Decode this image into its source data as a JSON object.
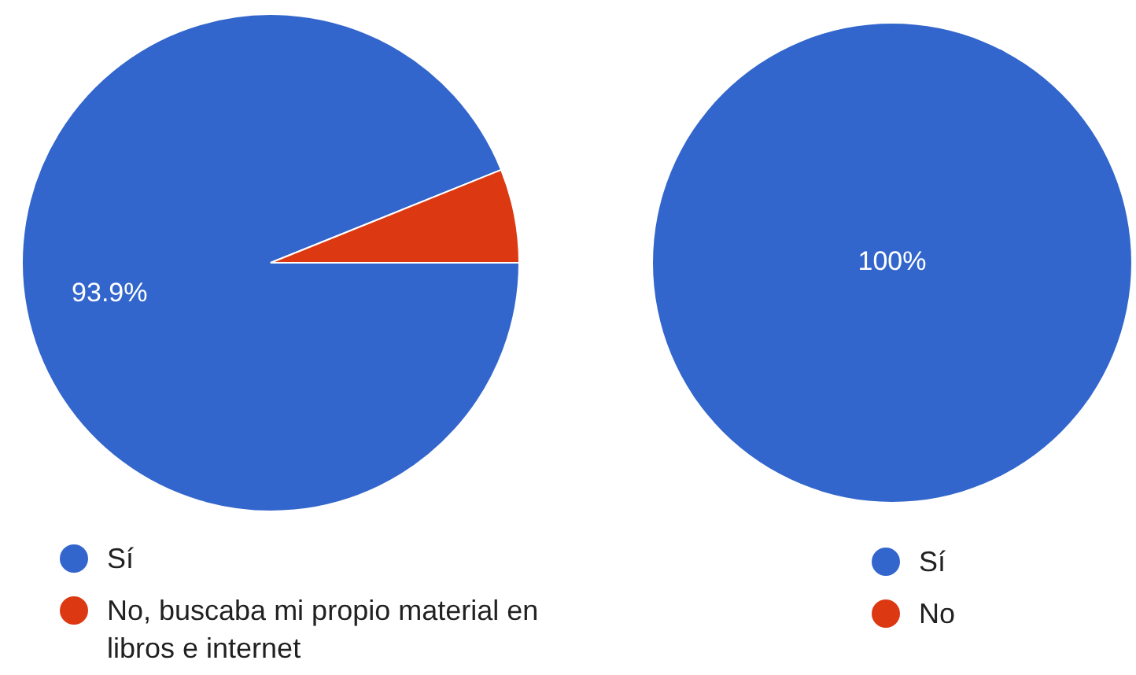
{
  "chart_data": [
    {
      "type": "pie",
      "categories": [
        "Sí",
        "No, buscaba mi propio material en libros e internet"
      ],
      "values": [
        93.9,
        6.1
      ],
      "colors": [
        "#3366cc",
        "#dc3912"
      ],
      "value_labels": [
        "93.9%",
        null
      ],
      "legend": "bottom"
    },
    {
      "type": "pie",
      "categories": [
        "Sí",
        "No"
      ],
      "values": [
        100,
        0
      ],
      "colors": [
        "#3366cc",
        "#dc3912"
      ],
      "value_labels": [
        "100%",
        null
      ],
      "legend": "bottom"
    }
  ]
}
